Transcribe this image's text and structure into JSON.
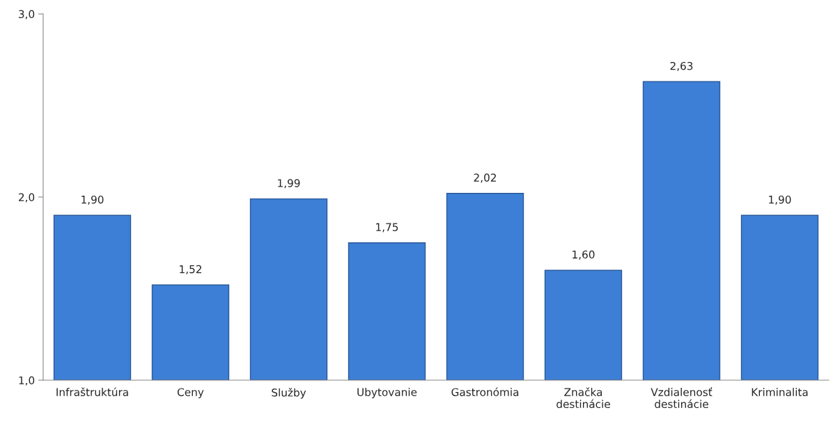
{
  "chart_data": {
    "type": "bar",
    "categories": [
      "Infraštruktúra",
      "Ceny",
      "Služby",
      "Ubytovanie",
      "Gastronómia",
      "Značka\ndestinácie",
      "Vzdialenosť\ndestinácie",
      "Kriminalita"
    ],
    "values": [
      1.9,
      1.52,
      1.99,
      1.75,
      2.02,
      1.6,
      2.63,
      1.9
    ],
    "value_labels": [
      "1,90",
      "1,52",
      "1,99",
      "1,75",
      "2,02",
      "1,60",
      "2,63",
      "1,90"
    ],
    "color": "#3d7fd6",
    "ylim": [
      1.0,
      3.0
    ],
    "yticks": [
      {
        "value": 1.0,
        "label": "1,0"
      },
      {
        "value": 2.0,
        "label": "2,0"
      },
      {
        "value": 3.0,
        "label": "3,0"
      }
    ],
    "grid": false,
    "legend": false
  }
}
